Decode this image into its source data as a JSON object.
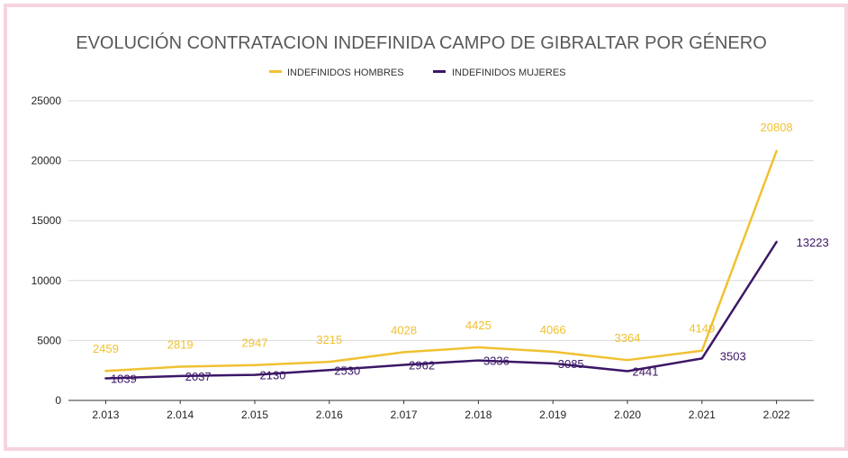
{
  "colors": {
    "frame_border": "#f6d3df",
    "hombres": "#f0c131",
    "mujeres": "#3b1766",
    "grid": "#d9d9d9",
    "axis": "#333333",
    "title": "#595959"
  },
  "chart_data": {
    "type": "line",
    "title": "EVOLUCIÓN CONTRATACION INDEFINIDA CAMPO DE GIBRALTAR POR GÉNERO",
    "xlabel": "",
    "ylabel": "",
    "categories": [
      "2.013",
      "2.014",
      "2.015",
      "2.016",
      "2.017",
      "2.018",
      "2.019",
      "2.020",
      "2.021",
      "2.022"
    ],
    "ylim": [
      0,
      25000
    ],
    "yticks": [
      "0",
      "5000",
      "10000",
      "15000",
      "20000",
      "25000"
    ],
    "grid": true,
    "legend_position": "top-center",
    "series": [
      {
        "name": "INDEFINIDOS HOMBRES",
        "values": [
          2459,
          2819,
          2947,
          3215,
          4028,
          4425,
          4066,
          3364,
          4149,
          20808
        ],
        "labels": [
          "2459",
          "2819",
          "2947",
          "3215",
          "4028",
          "4425",
          "4066",
          "3364",
          "4149",
          "20808"
        ]
      },
      {
        "name": "INDEFINIDOS MUJERES",
        "values": [
          1839,
          2037,
          2130,
          2530,
          2962,
          3336,
          3085,
          2441,
          3503,
          13223
        ],
        "labels": [
          "1839",
          "2037",
          "2130",
          "2530",
          "2962",
          "3336",
          "3085",
          "2441",
          "3503",
          "13223"
        ]
      }
    ]
  }
}
